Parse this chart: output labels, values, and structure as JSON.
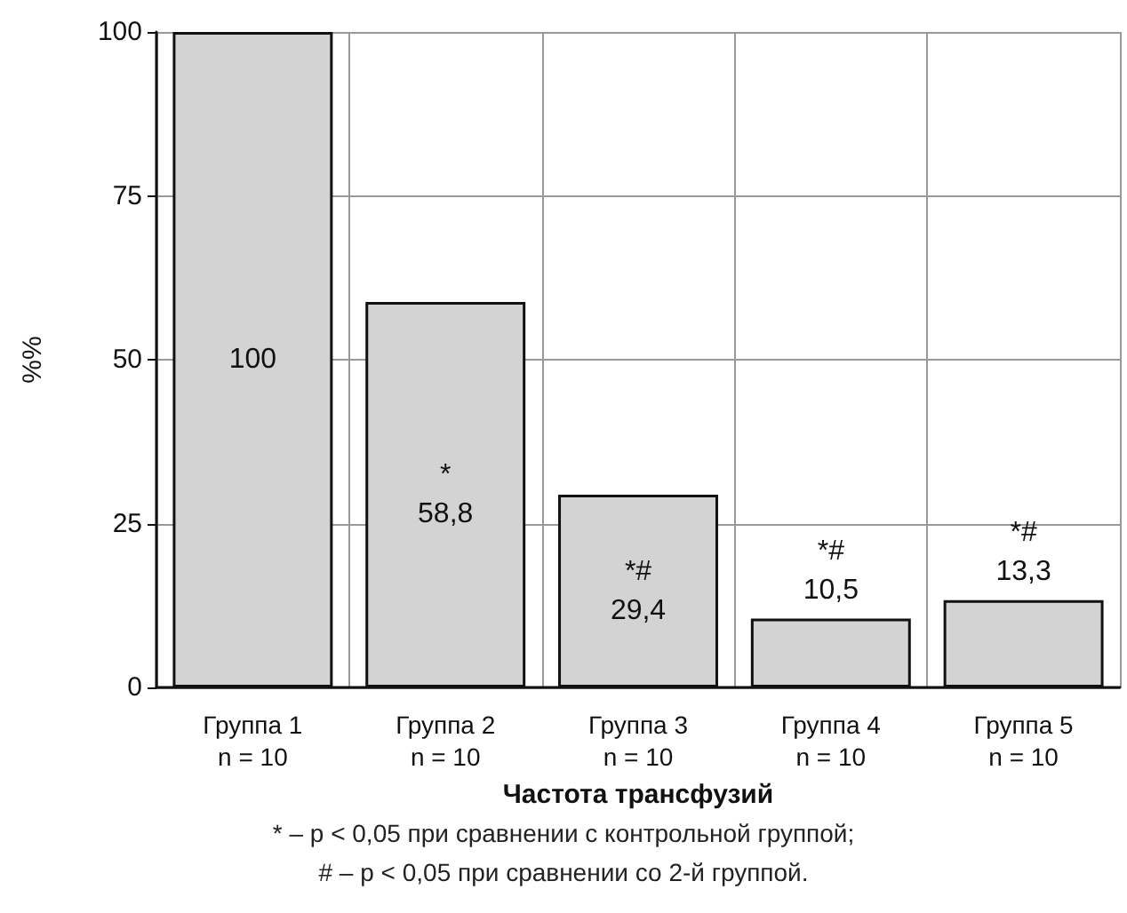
{
  "chart_data": {
    "type": "bar",
    "categories": [
      "Группа 1\nn = 10",
      "Группа 2\nn = 10",
      "Группа 3\nn = 10",
      "Группа 4\nn = 10",
      "Группа 5\nn = 10"
    ],
    "values": [
      100,
      58.8,
      29.4,
      10.5,
      13.3
    ],
    "value_labels": [
      "100",
      "*\n58,8",
      "*#\n29,4",
      "*#\n10,5",
      "*#\n13,3"
    ],
    "color": "#d3d3d3",
    "xlabel": "Частота трансфузий",
    "ylabel": "%%",
    "ylim": [
      0,
      100
    ],
    "yticks": [
      0,
      25,
      50,
      75,
      100
    ],
    "grid": true,
    "annotations": [
      "* – p < 0,05 при сравнении с контрольной группой;",
      "# – p < 0,05 при сравнении со 2-й группой."
    ]
  }
}
